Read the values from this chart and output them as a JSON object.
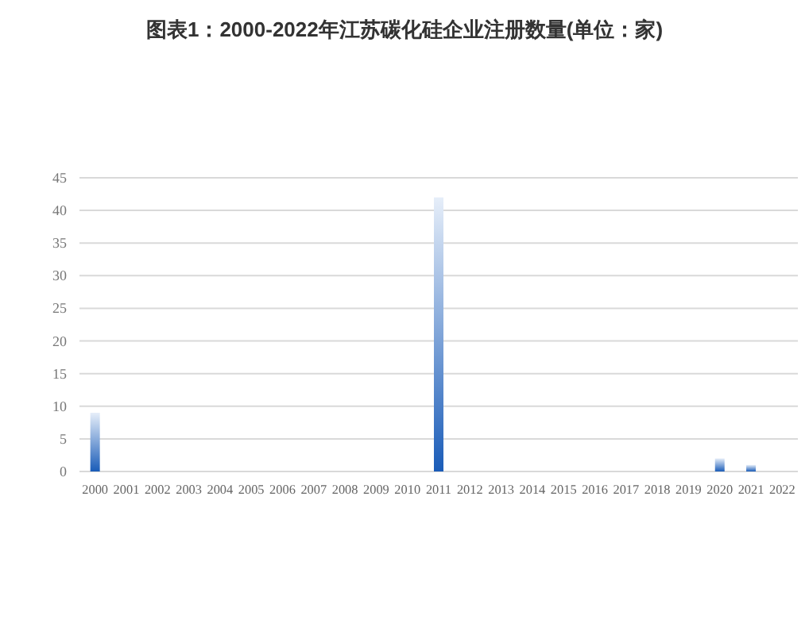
{
  "chart_data": {
    "type": "bar",
    "title": "图表1：2000-2022年江苏碳化硅企业注册数量(单位：家)",
    "categories": [
      "2000",
      "2001",
      "2002",
      "2003",
      "2004",
      "2005",
      "2006",
      "2007",
      "2008",
      "2009",
      "2010",
      "2011",
      "2012",
      "2013",
      "2014",
      "2015",
      "2016",
      "2017",
      "2018",
      "2019",
      "2020",
      "2021",
      "2022"
    ],
    "values": [
      9,
      null,
      null,
      null,
      null,
      null,
      null,
      null,
      null,
      null,
      null,
      42,
      null,
      null,
      null,
      null,
      null,
      null,
      null,
      null,
      2,
      1,
      0
    ],
    "color": "#1a5cb8",
    "ylim": [
      0,
      45
    ],
    "yticks": [
      0,
      5,
      10,
      15,
      20,
      25,
      30,
      35,
      40,
      45
    ],
    "grid": "y"
  }
}
